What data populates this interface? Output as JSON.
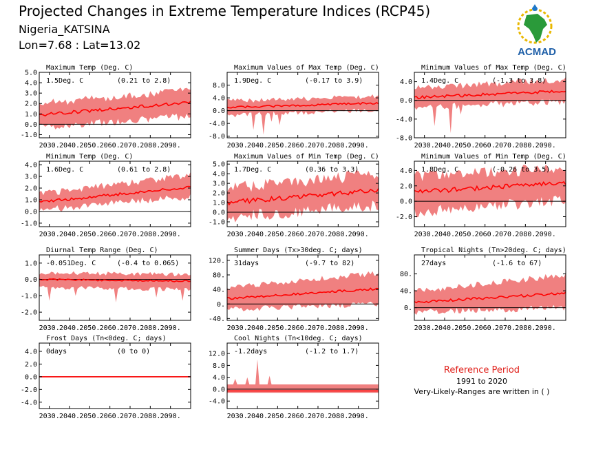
{
  "header": {
    "title": "Projected Changes in Extreme Temperature Indices (RCP45)",
    "region": "Nigeria_KATSINA",
    "coords": "Lon=7.68 : Lat=13.02"
  },
  "logo": {
    "text": "ACMAD",
    "icon": "africa-map-logo"
  },
  "reference": {
    "title": "Reference Period",
    "years": "1991 to 2020",
    "note": "Very-Likely-Ranges are written in ( )"
  },
  "colors": {
    "band": "#f08080",
    "line": "#ff0000",
    "zero": "#000000",
    "ref_title": "#e0201a"
  },
  "chart_data": [
    {
      "type": "area",
      "title": "Maximum Temp (Deg. C)",
      "mean": "1.5Deg. C",
      "range": "(0.21 to 2.8)",
      "xlim": [
        2025,
        2100
      ],
      "ylim": [
        -1.3,
        5.0
      ],
      "yticks": [
        -1.0,
        0.0,
        1.0,
        2.0,
        3.0,
        4.0,
        5.0
      ],
      "yticklabels": [
        "-1.0",
        "0.0",
        "1.0",
        "2.0",
        "3.0",
        "4.0",
        "5.0"
      ],
      "xticks": [
        2030,
        2040,
        2050,
        2060,
        2070,
        2080,
        2090
      ],
      "xticklabels": [
        "2030.",
        "2040.",
        "2050.",
        "2060.",
        "2070.",
        "2080.",
        "2090."
      ],
      "start": [
        2025,
        0.9,
        -0.3,
        2.0
      ],
      "end": [
        2100,
        2.1,
        0.8,
        3.3
      ],
      "noise": 0.15
    },
    {
      "type": "area",
      "title": "Maximum Values of Max Temp (Deg. C)",
      "mean": "1.9Deg. C",
      "range": "(-0.17 to 3.9)",
      "xlim": [
        2025,
        2100
      ],
      "ylim": [
        -8.5,
        12.0
      ],
      "yticks": [
        -8.0,
        -4.0,
        0.0,
        4.0,
        8.0
      ],
      "yticklabels": [
        "-8.0",
        "-4.0",
        "0.0",
        "4.0",
        "8.0"
      ],
      "xticks": [
        2030,
        2040,
        2050,
        2060,
        2070,
        2080,
        2090
      ],
      "xticklabels": [
        "2030.",
        "2040.",
        "2050.",
        "2060.",
        "2070.",
        "2080.",
        "2090."
      ],
      "start": [
        2025,
        1.0,
        -1.5,
        3.0
      ],
      "end": [
        2100,
        2.4,
        0.3,
        4.5
      ],
      "noise": 0.3,
      "spikes": [
        [
          2038,
          -6.0
        ],
        [
          2043,
          -7.5
        ],
        [
          2051,
          -4.5
        ],
        [
          2047,
          -3.5
        ]
      ]
    },
    {
      "type": "area",
      "title": "Minimum Values of Max Temp (Deg. C)",
      "mean": "1.4Deg. C",
      "range": "(-1.3 to 3.8)",
      "xlim": [
        2025,
        2100
      ],
      "ylim": [
        -8.0,
        6.0
      ],
      "yticks": [
        -8.0,
        -4.0,
        0.0,
        4.0
      ],
      "yticklabels": [
        "-8.0",
        "-4.0",
        "0.0",
        "4.0"
      ],
      "xticks": [
        2030,
        2040,
        2050,
        2060,
        2070,
        2080,
        2090
      ],
      "xticklabels": [
        "2030.",
        "2040.",
        "2050.",
        "2060.",
        "2070.",
        "2080.",
        "2090."
      ],
      "start": [
        2025,
        0.6,
        -1.5,
        2.6
      ],
      "end": [
        2100,
        2.0,
        -0.3,
        4.5
      ],
      "noise": 0.3,
      "spikes": [
        [
          2035,
          -5.5
        ],
        [
          2043,
          -7.0
        ],
        [
          2048,
          -3.0
        ]
      ]
    },
    {
      "type": "area",
      "title": "Minimum Temp (Deg. C)",
      "mean": "1.6Deg. C",
      "range": "(0.61 to 2.8)",
      "xlim": [
        2025,
        2100
      ],
      "ylim": [
        -1.3,
        4.3
      ],
      "yticks": [
        -1.0,
        0.0,
        1.0,
        2.0,
        3.0,
        4.0
      ],
      "yticklabels": [
        "-1.0",
        "0.0",
        "1.0",
        "2.0",
        "3.0",
        "4.0"
      ],
      "xticks": [
        2030,
        2040,
        2050,
        2060,
        2070,
        2080,
        2090
      ],
      "xticklabels": [
        "2030.",
        "2040.",
        "2050.",
        "2060.",
        "2070.",
        "2080.",
        "2090."
      ],
      "start": [
        2025,
        0.8,
        0.1,
        1.5
      ],
      "end": [
        2100,
        2.1,
        1.3,
        3.1
      ],
      "noise": 0.12
    },
    {
      "type": "area",
      "title": "Maximum Values of Min Temp (Deg. C)",
      "mean": "1.7Deg. C",
      "range": "(0.36 to 3.3)",
      "xlim": [
        2025,
        2100
      ],
      "ylim": [
        -1.5,
        5.3
      ],
      "yticks": [
        -1.0,
        0.0,
        1.0,
        2.0,
        3.0,
        4.0,
        5.0
      ],
      "yticklabels": [
        "-1.0",
        "0.0",
        "1.0",
        "2.0",
        "3.0",
        "4.0",
        "5.0"
      ],
      "xticks": [
        2030,
        2040,
        2050,
        2060,
        2070,
        2080,
        2090
      ],
      "xticklabels": [
        "2030.",
        "2040.",
        "2050.",
        "2060.",
        "2070.",
        "2080.",
        "2090."
      ],
      "start": [
        2025,
        1.0,
        -0.5,
        2.5
      ],
      "end": [
        2100,
        2.3,
        0.7,
        4.0
      ],
      "noise": 0.25
    },
    {
      "type": "area",
      "title": "Minimum Values of Min Temp (Deg. C)",
      "mean": "1.8Deg. C",
      "range": "(-0.26 to 3.5)",
      "xlim": [
        2025,
        2100
      ],
      "ylim": [
        -3.3,
        5.2
      ],
      "yticks": [
        -2.0,
        0.0,
        2.0,
        4.0
      ],
      "yticklabels": [
        "-2.0",
        "0.0",
        "2.0",
        "4.0"
      ],
      "xticks": [
        2030,
        2040,
        2050,
        2060,
        2070,
        2080,
        2090
      ],
      "xticklabels": [
        "2030.",
        "2040.",
        "2050.",
        "2060.",
        "2070.",
        "2080.",
        "2090."
      ],
      "start": [
        2025,
        1.2,
        -1.5,
        3.2
      ],
      "end": [
        2100,
        2.4,
        0.2,
        4.3
      ],
      "noise": 0.3
    },
    {
      "type": "area",
      "title": "Diurnal Temp Range (Deg. C)",
      "mean": "-0.051Deg. C",
      "range": "(-0.4 to 0.065)",
      "xlim": [
        2025,
        2100
      ],
      "ylim": [
        -2.5,
        1.5
      ],
      "yticks": [
        -2.0,
        -1.0,
        0.0,
        1.0
      ],
      "yticklabels": [
        "-2.0",
        "-1.0",
        "0.0",
        "1.0"
      ],
      "xticks": [
        2030,
        2040,
        2050,
        2060,
        2070,
        2080,
        2090
      ],
      "xticklabels": [
        "2030.",
        "2040.",
        "2050.",
        "2060.",
        "2070.",
        "2080.",
        "2090."
      ],
      "start": [
        2025,
        0.0,
        -0.5,
        0.4
      ],
      "end": [
        2100,
        -0.1,
        -0.6,
        0.3
      ],
      "noise": 0.05,
      "spikes": [
        [
          2030,
          -1.3
        ],
        [
          2043,
          -1.0
        ],
        [
          2063,
          -1.4
        ],
        [
          2083,
          -1.1
        ],
        [
          2096,
          -1.3
        ]
      ]
    },
    {
      "type": "area",
      "title": "Summer Days (Tx>30deg. C; days)",
      "mean": "31days",
      "range": "(-9.7 to 82)",
      "xlim": [
        2025,
        2100
      ],
      "ylim": [
        -45,
        135
      ],
      "yticks": [
        -40,
        0,
        40,
        80,
        120
      ],
      "yticklabels": [
        "-40.",
        "0.",
        "40.",
        "80.",
        "120."
      ],
      "xticks": [
        2030,
        2040,
        2050,
        2060,
        2070,
        2080,
        2090
      ],
      "xticklabels": [
        "2030.",
        "2040.",
        "2050.",
        "2060.",
        "2070.",
        "2080.",
        "2090."
      ],
      "start": [
        2025,
        15,
        -15,
        45
      ],
      "end": [
        2100,
        42,
        0,
        85
      ],
      "noise": 3
    },
    {
      "type": "area",
      "title": "Tropical Nights (Tn>20deg. C; days)",
      "mean": "27days",
      "range": "(-1.6 to 67)",
      "xlim": [
        2025,
        2100
      ],
      "ylim": [
        -30,
        125
      ],
      "yticks": [
        0,
        40,
        80
      ],
      "yticklabels": [
        "0.",
        "40.",
        "80."
      ],
      "xticks": [
        2030,
        2040,
        2050,
        2060,
        2070,
        2080,
        2090
      ],
      "xticklabels": [
        "2030.",
        "2040.",
        "2050.",
        "2060.",
        "2070.",
        "2080.",
        "2090."
      ],
      "start": [
        2025,
        12,
        -10,
        38
      ],
      "end": [
        2100,
        35,
        0,
        78
      ],
      "noise": 3
    },
    {
      "type": "area",
      "title": "Frost Days (Tn<0deg. C; days)",
      "mean": "0days",
      "range": "(0 to 0)",
      "xlim": [
        2025,
        2100
      ],
      "ylim": [
        -5.0,
        5.3
      ],
      "yticks": [
        -4.0,
        -2.0,
        0.0,
        2.0,
        4.0
      ],
      "yticklabels": [
        "-4.0",
        "-2.0",
        "0.0",
        "2.0",
        "4.0"
      ],
      "xticks": [
        2030,
        2040,
        2050,
        2060,
        2070,
        2080,
        2090
      ],
      "xticklabels": [
        "2030.",
        "2040.",
        "2050.",
        "2060.",
        "2070.",
        "2080.",
        "2090."
      ],
      "start": [
        2025,
        0.0,
        0.0,
        0.0
      ],
      "end": [
        2100,
        0.0,
        0.0,
        0.0
      ],
      "noise": 0
    },
    {
      "type": "area",
      "title": "Cool Nights (Tn<10deg. C; days)",
      "mean": "-1.2days",
      "range": "(-1.2 to 1.7)",
      "xlim": [
        2025,
        2100
      ],
      "ylim": [
        -6.5,
        15.5
      ],
      "yticks": [
        -4.0,
        0.0,
        4.0,
        8.0,
        12.0
      ],
      "yticklabels": [
        "-4.0",
        "0.0",
        "4.0",
        "8.0",
        "12.0"
      ],
      "xticks": [
        2030,
        2040,
        2050,
        2060,
        2070,
        2080,
        2090
      ],
      "xticklabels": [
        "2030.",
        "2040.",
        "2050.",
        "2060.",
        "2070.",
        "2080.",
        "2090."
      ],
      "start": [
        2025,
        -0.6,
        -1.2,
        1.6
      ],
      "end": [
        2100,
        -0.6,
        -1.2,
        1.6
      ],
      "noise": 0,
      "spikes_up": [
        [
          2029,
          3.5
        ],
        [
          2035,
          4.0
        ],
        [
          2040,
          10.0
        ],
        [
          2046,
          4.5
        ]
      ]
    }
  ]
}
